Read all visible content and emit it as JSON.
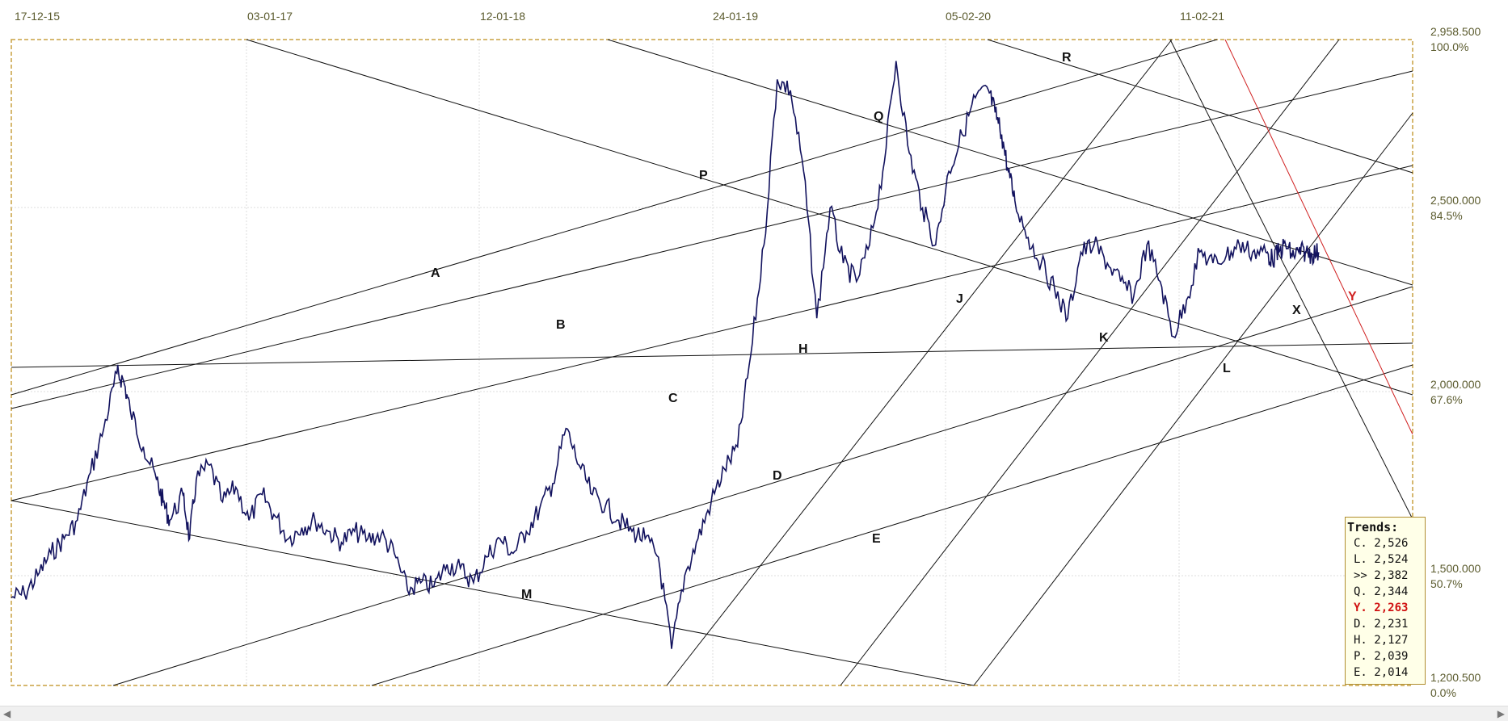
{
  "chart_data": {
    "type": "line",
    "title": "",
    "xlabel": "",
    "ylabel": "",
    "x_ticks": [
      "17-12-15",
      "03-01-17",
      "12-01-18",
      "24-01-19",
      "05-02-20",
      "11-02-21"
    ],
    "y_ticks": [
      {
        "value": 2958.5,
        "label": "2,958.500",
        "pct": "100.0%"
      },
      {
        "value": 2500,
        "label": "2,500.000",
        "pct": "84.5%"
      },
      {
        "value": 2000,
        "label": "2,000.000",
        "pct": "67.6%"
      },
      {
        "value": 1500,
        "label": "1,500.000",
        "pct": "50.7%"
      },
      {
        "value": 1200.5,
        "label": "1,200.500",
        "pct": "0.0%"
      }
    ],
    "ylim": [
      1200.5,
      2958.5
    ],
    "grid": true,
    "series": [
      {
        "values_x": [
          0,
          0.01,
          0.02,
          0.03,
          0.04,
          0.05,
          0.06,
          0.07,
          0.08,
          0.085,
          0.09,
          0.1,
          0.11,
          0.115,
          0.12,
          0.13,
          0.135,
          0.14,
          0.15,
          0.16,
          0.17,
          0.18,
          0.19,
          0.2,
          0.21,
          0.22,
          0.23,
          0.24,
          0.25,
          0.26,
          0.27,
          0.28,
          0.29,
          0.3,
          0.31,
          0.32,
          0.33,
          0.34,
          0.35,
          0.36,
          0.37,
          0.38,
          0.39,
          0.4,
          0.41,
          0.42,
          0.43,
          0.44,
          0.45,
          0.46,
          0.47,
          0.48,
          0.49,
          0.5,
          0.51,
          0.52,
          0.53,
          0.54,
          0.55,
          0.56,
          0.57,
          0.58,
          0.59,
          0.6,
          0.61,
          0.62,
          0.63,
          0.64,
          0.65,
          0.66,
          0.67,
          0.68,
          0.69,
          0.7,
          0.71,
          0.72,
          0.73,
          0.74,
          0.745,
          0.75,
          0.755,
          0.76,
          0.77,
          0.78,
          0.79,
          0.8,
          0.81,
          0.82,
          0.83,
          0.84,
          0.85,
          0.86,
          0.87,
          0.88,
          0.89,
          0.9,
          0.91,
          0.92,
          0.93,
          0.94,
          0.95,
          0.955,
          0.96,
          0.965,
          0.97,
          0.975,
          0.98,
          0.985,
          0.99
        ],
        "values": [
          1440,
          1450,
          1500,
          1560,
          1600,
          1650,
          1780,
          1900,
          2050,
          2030,
          1950,
          1850,
          1760,
          1700,
          1650,
          1720,
          1600,
          1760,
          1800,
          1700,
          1740,
          1650,
          1720,
          1660,
          1600,
          1630,
          1650,
          1620,
          1590,
          1620,
          1600,
          1610,
          1560,
          1460,
          1480,
          1470,
          1530,
          1520,
          1480,
          1550,
          1600,
          1560,
          1620,
          1680,
          1750,
          1900,
          1800,
          1720,
          1690,
          1650,
          1620,
          1600,
          1550,
          1300,
          1500,
          1600,
          1700,
          1790,
          1850,
          2100,
          2400,
          2850,
          2820,
          2600,
          2200,
          2500,
          2350,
          2300,
          2400,
          2600,
          2900,
          2650,
          2500,
          2400,
          2600,
          2700,
          2800,
          2820,
          2760,
          2700,
          2600,
          2520,
          2420,
          2350,
          2280,
          2200,
          2380,
          2400,
          2350,
          2300,
          2260,
          2400,
          2300,
          2150,
          2250,
          2380,
          2350,
          2370,
          2400,
          2380,
          2380,
          2360,
          2380,
          2400,
          2370,
          2380,
          2380,
          2375,
          2380
        ],
        "name": ""
      }
    ],
    "trendlines": [
      "A",
      "B",
      "C",
      "D",
      "E",
      "H",
      "J",
      "K",
      "L",
      "M",
      "P",
      "Q",
      "R",
      "X",
      "Y"
    ]
  },
  "header": {
    "dates": [
      "17-12-15",
      "03-01-17",
      "12-01-18",
      "24-01-19",
      "05-02-20",
      "11-02-21"
    ]
  },
  "trends": {
    "title": "Trends:",
    "rows": [
      {
        "key": "C.",
        "value": "2,526",
        "color": "#111111"
      },
      {
        "key": "L.",
        "value": "2,524",
        "color": "#111111"
      },
      {
        "key": ">>",
        "value": "2,382",
        "color": "#111111"
      },
      {
        "key": "Q.",
        "value": "2,344",
        "color": "#111111"
      },
      {
        "key": "Y.",
        "value": "2,263",
        "color": "#d01010"
      },
      {
        "key": "D.",
        "value": "2,231",
        "color": "#111111"
      },
      {
        "key": "H.",
        "value": "2,127",
        "color": "#111111"
      },
      {
        "key": "P.",
        "value": "2,039",
        "color": "#111111"
      },
      {
        "key": "E.",
        "value": "2,014",
        "color": "#111111"
      }
    ]
  },
  "colors": {
    "price": "#12125e",
    "trendline": "#111111",
    "red_trendline": "#d02020",
    "frame": "#c8a040",
    "grid": "#cfcfcf"
  }
}
